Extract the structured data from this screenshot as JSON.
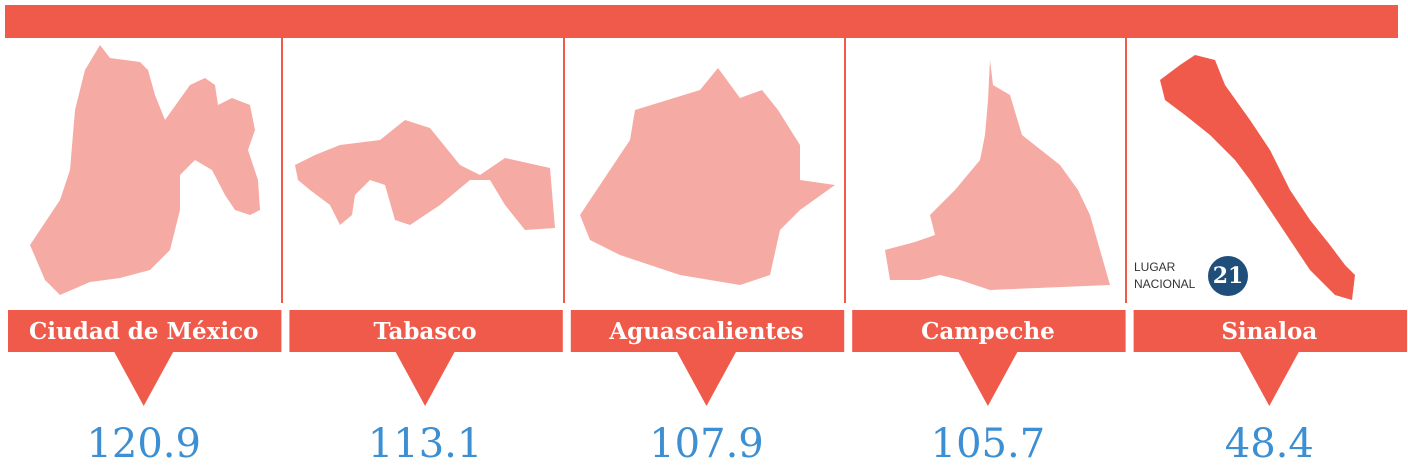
{
  "states": [
    {
      "name": "Ciudad de México",
      "value": 120.9
    },
    {
      "name": "Tabasco",
      "value": 113.1
    },
    {
      "name": "Aguascalientes",
      "value": 107.9
    },
    {
      "name": "Campeche",
      "value": 105.7
    },
    {
      "name": "Sinaloa",
      "value": 48.4
    }
  ],
  "highlight": {
    "label": [
      "LUGAR",
      "NACIONAL"
    ],
    "rank": 21
  }
}
